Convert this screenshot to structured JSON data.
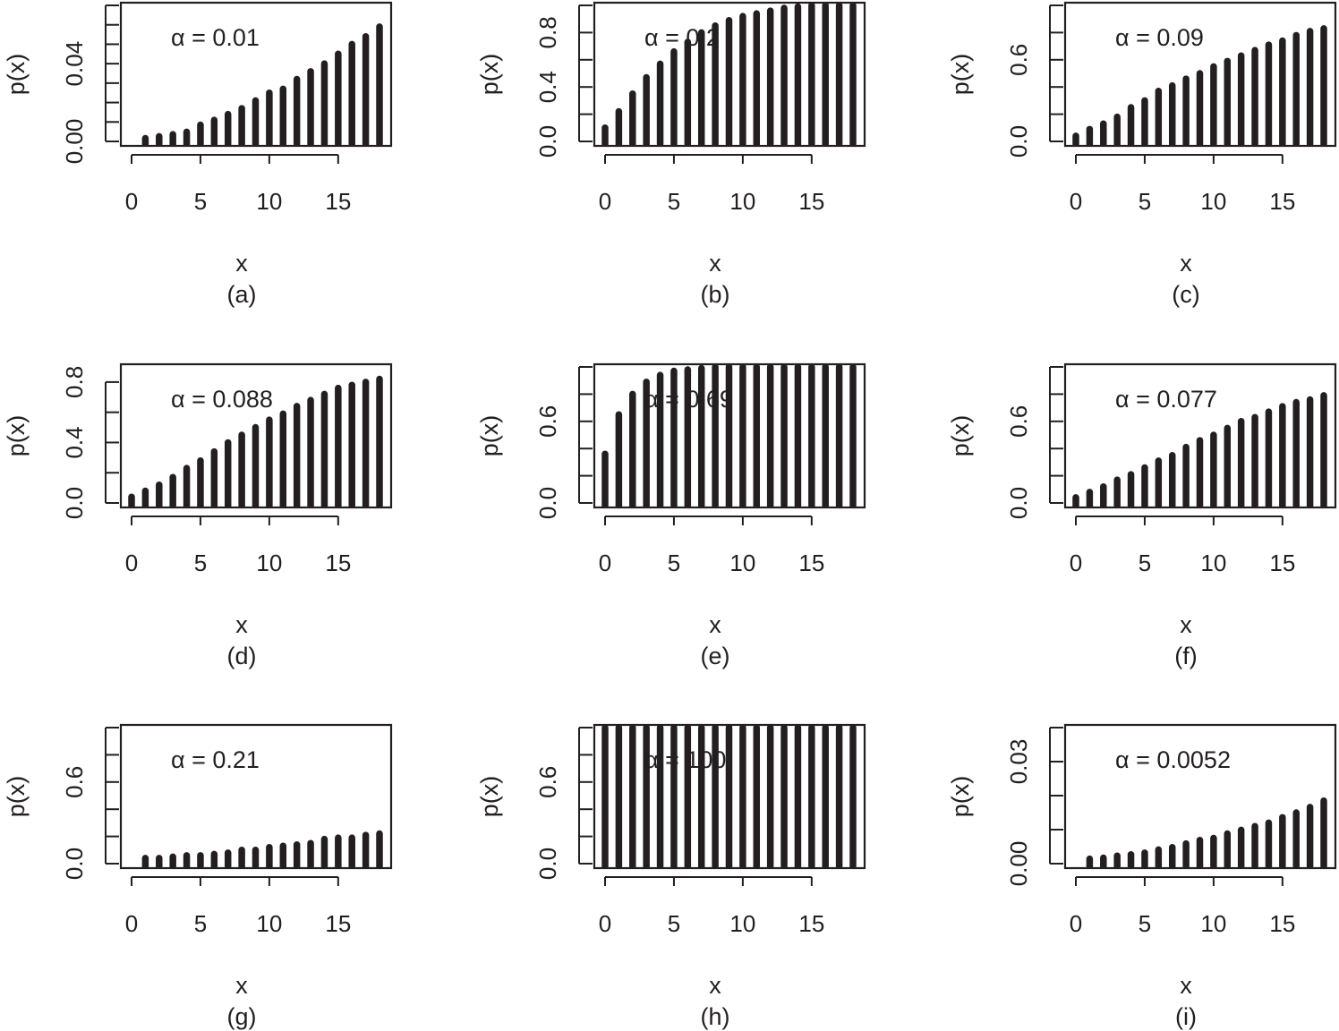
{
  "chart_data": [
    {
      "panel": "(a)",
      "type": "bar",
      "xlabel": "x",
      "ylabel": "p(x)",
      "annotation": "α = 0.01",
      "xlim": [
        0,
        18
      ],
      "ylim": [
        0,
        0.07
      ],
      "xticks": [
        0,
        5,
        10,
        15
      ],
      "yticks": [
        0,
        0.01,
        0.02,
        0.03,
        0.04,
        0.05,
        0.06,
        0.07
      ],
      "yticklabels": [
        "0.00",
        "",
        "",
        "",
        "0.04",
        "",
        "",
        ""
      ],
      "x": [
        1,
        2,
        3,
        4,
        5,
        6,
        7,
        8,
        9,
        10,
        11,
        12,
        13,
        14,
        15,
        16,
        17,
        18
      ],
      "values": [
        0.0016,
        0.0026,
        0.0036,
        0.0049,
        0.0085,
        0.011,
        0.014,
        0.017,
        0.021,
        0.025,
        0.027,
        0.032,
        0.036,
        0.04,
        0.045,
        0.05,
        0.054,
        0.059
      ]
    },
    {
      "panel": "(b)",
      "type": "bar",
      "xlabel": "x",
      "ylabel": "p(x)",
      "annotation": "α = 0.2",
      "xlim": [
        0,
        18
      ],
      "ylim": [
        0,
        1.0
      ],
      "xticks": [
        0,
        5,
        10,
        15
      ],
      "yticks": [
        0,
        0.2,
        0.4,
        0.6,
        0.8,
        1.0
      ],
      "yticklabels": [
        "0.0",
        "",
        "0.4",
        "",
        "0.8",
        ""
      ],
      "x": [
        0,
        1,
        2,
        3,
        4,
        5,
        6,
        7,
        8,
        9,
        10,
        11,
        12,
        13,
        14,
        15,
        16,
        17,
        18
      ],
      "values": [
        0.1,
        0.22,
        0.35,
        0.47,
        0.57,
        0.66,
        0.73,
        0.8,
        0.85,
        0.89,
        0.92,
        0.94,
        0.96,
        0.98,
        0.99,
        1.0,
        1.0,
        1.0,
        1.0
      ]
    },
    {
      "panel": "(c)",
      "type": "bar",
      "xlabel": "x",
      "ylabel": "p(x)",
      "annotation": "α = 0.09",
      "xlim": [
        0,
        18
      ],
      "ylim": [
        0,
        1.0
      ],
      "xticks": [
        0,
        5,
        10,
        15
      ],
      "yticks": [
        0,
        0.2,
        0.4,
        0.6,
        0.8,
        1.0
      ],
      "yticklabels": [
        "0.0",
        "",
        "",
        "0.6",
        "",
        ""
      ],
      "x": [
        0,
        1,
        2,
        3,
        4,
        5,
        6,
        7,
        8,
        9,
        10,
        11,
        12,
        13,
        14,
        15,
        16,
        17,
        18
      ],
      "values": [
        0.04,
        0.09,
        0.13,
        0.18,
        0.25,
        0.3,
        0.37,
        0.41,
        0.46,
        0.5,
        0.55,
        0.59,
        0.63,
        0.67,
        0.71,
        0.74,
        0.78,
        0.81,
        0.83
      ]
    },
    {
      "panel": "(d)",
      "type": "bar",
      "xlabel": "x",
      "ylabel": "p(x)",
      "annotation": "α = 0.088",
      "xlim": [
        0,
        18
      ],
      "ylim": [
        0,
        0.9
      ],
      "xticks": [
        0,
        5,
        10,
        15
      ],
      "yticks": [
        0,
        0.2,
        0.4,
        0.6,
        0.8
      ],
      "yticklabels": [
        "0.0",
        "",
        "0.4",
        "",
        "0.8"
      ],
      "x": [
        0,
        1,
        2,
        3,
        4,
        5,
        6,
        7,
        8,
        9,
        10,
        11,
        12,
        13,
        14,
        15,
        16,
        17,
        18
      ],
      "values": [
        0.04,
        0.08,
        0.12,
        0.17,
        0.23,
        0.28,
        0.34,
        0.4,
        0.45,
        0.5,
        0.55,
        0.59,
        0.64,
        0.68,
        0.72,
        0.76,
        0.78,
        0.8,
        0.82
      ]
    },
    {
      "panel": "(e)",
      "type": "bar",
      "xlabel": "x",
      "ylabel": "p(x)",
      "annotation": "α = 0.69",
      "xlim": [
        0,
        18
      ],
      "ylim": [
        0,
        1.0
      ],
      "xticks": [
        0,
        5,
        10,
        15
      ],
      "yticks": [
        0,
        0.2,
        0.4,
        0.6,
        0.8,
        1.0
      ],
      "yticklabels": [
        "0.0",
        "",
        "",
        "0.6",
        "",
        ""
      ],
      "x": [
        0,
        1,
        2,
        3,
        4,
        5,
        6,
        7,
        8,
        9,
        10,
        11,
        12,
        13,
        14,
        15,
        16,
        17,
        18
      ],
      "values": [
        0.36,
        0.65,
        0.8,
        0.89,
        0.94,
        0.97,
        0.98,
        0.99,
        1.0,
        1.0,
        1.0,
        1.0,
        1.0,
        1.0,
        1.0,
        1.0,
        1.0,
        1.0,
        1.0
      ]
    },
    {
      "panel": "(f)",
      "type": "bar",
      "xlabel": "x",
      "ylabel": "p(x)",
      "annotation": "α = 0.077",
      "xlim": [
        0,
        18
      ],
      "ylim": [
        0,
        1.0
      ],
      "xticks": [
        0,
        5,
        10,
        15
      ],
      "yticks": [
        0,
        0.2,
        0.4,
        0.6,
        0.8,
        1.0
      ],
      "yticklabels": [
        "0.0",
        "",
        "",
        "0.6",
        "",
        ""
      ],
      "x": [
        0,
        1,
        2,
        3,
        4,
        5,
        6,
        7,
        8,
        9,
        10,
        11,
        12,
        13,
        14,
        15,
        16,
        17,
        18
      ],
      "values": [
        0.04,
        0.08,
        0.12,
        0.17,
        0.21,
        0.26,
        0.31,
        0.35,
        0.41,
        0.46,
        0.5,
        0.55,
        0.6,
        0.63,
        0.67,
        0.71,
        0.74,
        0.76,
        0.79
      ]
    },
    {
      "panel": "(g)",
      "type": "bar",
      "xlabel": "x",
      "ylabel": "p(x)",
      "annotation": "α = 0.21",
      "xlim": [
        0,
        18
      ],
      "ylim": [
        0,
        1.0
      ],
      "xticks": [
        0,
        5,
        10,
        15
      ],
      "yticks": [
        0,
        0.2,
        0.4,
        0.6,
        0.8,
        1.0
      ],
      "yticklabels": [
        "0.0",
        "",
        "",
        "0.6",
        "",
        ""
      ],
      "x": [
        1,
        2,
        3,
        4,
        5,
        6,
        7,
        8,
        9,
        10,
        11,
        12,
        13,
        14,
        15,
        16,
        17,
        18
      ],
      "values": [
        0.04,
        0.04,
        0.05,
        0.06,
        0.06,
        0.07,
        0.08,
        0.1,
        0.1,
        0.12,
        0.13,
        0.14,
        0.15,
        0.18,
        0.19,
        0.19,
        0.21,
        0.22
      ]
    },
    {
      "panel": "(h)",
      "type": "bar",
      "xlabel": "x",
      "ylabel": "p(x)",
      "annotation": "α = 100",
      "xlim": [
        0,
        18
      ],
      "ylim": [
        0,
        1.0
      ],
      "xticks": [
        0,
        5,
        10,
        15
      ],
      "yticks": [
        0,
        0.2,
        0.4,
        0.6,
        0.8,
        1.0
      ],
      "yticklabels": [
        "0.0",
        "",
        "",
        "0.6",
        "",
        ""
      ],
      "x": [
        0,
        1,
        2,
        3,
        4,
        5,
        6,
        7,
        8,
        9,
        10,
        11,
        12,
        13,
        14,
        15,
        16,
        17,
        18
      ],
      "values": [
        1.0,
        1.0,
        1.0,
        1.0,
        1.0,
        1.0,
        1.0,
        1.0,
        1.0,
        1.0,
        1.0,
        1.0,
        1.0,
        1.0,
        1.0,
        1.0,
        1.0,
        1.0,
        1.0
      ]
    },
    {
      "panel": "(i)",
      "type": "bar",
      "xlabel": "x",
      "ylabel": "p(x)",
      "annotation": "α = 0.0052",
      "xlim": [
        0,
        18
      ],
      "ylim": [
        0,
        0.04
      ],
      "xticks": [
        0,
        5,
        10,
        15
      ],
      "yticks": [
        0,
        0.01,
        0.02,
        0.03,
        0.04
      ],
      "yticklabels": [
        "0.00",
        "",
        "",
        "0.03",
        ""
      ],
      "x": [
        1,
        2,
        3,
        4,
        5,
        6,
        7,
        8,
        9,
        10,
        11,
        12,
        13,
        14,
        15,
        16,
        17,
        18
      ],
      "values": [
        0.0014,
        0.0017,
        0.0023,
        0.0027,
        0.0032,
        0.0041,
        0.0048,
        0.0059,
        0.0069,
        0.0075,
        0.0088,
        0.0099,
        0.011,
        0.012,
        0.0136,
        0.015,
        0.0166,
        0.0185
      ]
    }
  ]
}
